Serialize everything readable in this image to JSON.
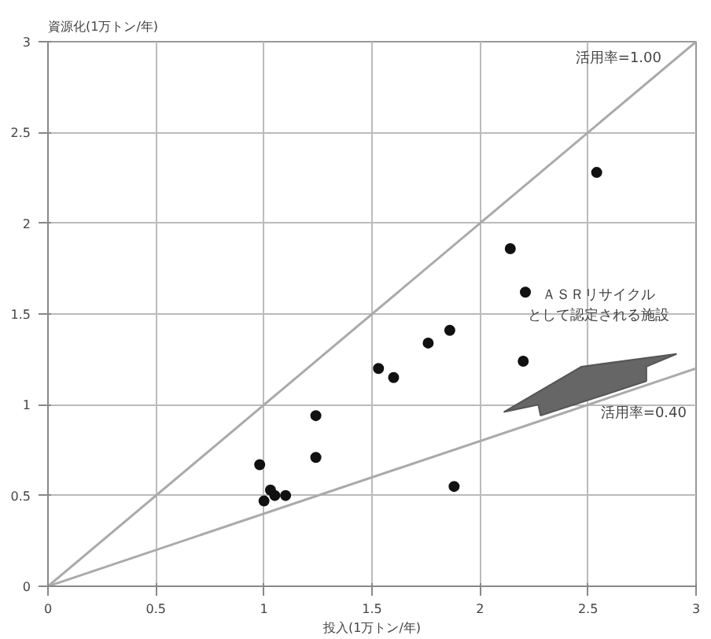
{
  "chart_data": {
    "type": "scatter",
    "title": "資源化(1万トン/年)",
    "xlabel": "投入(1万トン/年)",
    "xlim": [
      0,
      3
    ],
    "ylim": [
      0,
      3
    ],
    "xticks": [
      0,
      0.5,
      1,
      1.5,
      2,
      2.5,
      3
    ],
    "yticks": [
      0,
      0.5,
      1,
      1.5,
      2,
      2.5,
      3
    ],
    "grid": true,
    "annotations": [
      "ＡＳＲリサイクル",
      "として認定される施設"
    ],
    "series": [
      {
        "marker": "circle",
        "color": "#111111",
        "x": [
          2.54,
          2.14,
          2.21,
          1.86,
          1.76,
          1.53,
          1.6,
          2.2,
          1.88,
          1.24,
          1.24,
          0.98,
          1.0,
          1.03,
          1.05,
          1.1
        ],
        "values": [
          2.28,
          1.86,
          1.62,
          1.41,
          1.34,
          1.2,
          1.15,
          1.24,
          0.55,
          0.94,
          0.71,
          0.67,
          0.47,
          0.53,
          0.5,
          0.5
        ]
      },
      {
        "type": "line",
        "name": "活用率=1.00",
        "color": "#aaaaaa",
        "x": [
          0,
          3
        ],
        "values": [
          0,
          3
        ]
      },
      {
        "type": "line",
        "name": "活用率=0.40",
        "color": "#aaaaaa",
        "x": [
          0,
          3
        ],
        "values": [
          0,
          1.2
        ]
      }
    ]
  }
}
